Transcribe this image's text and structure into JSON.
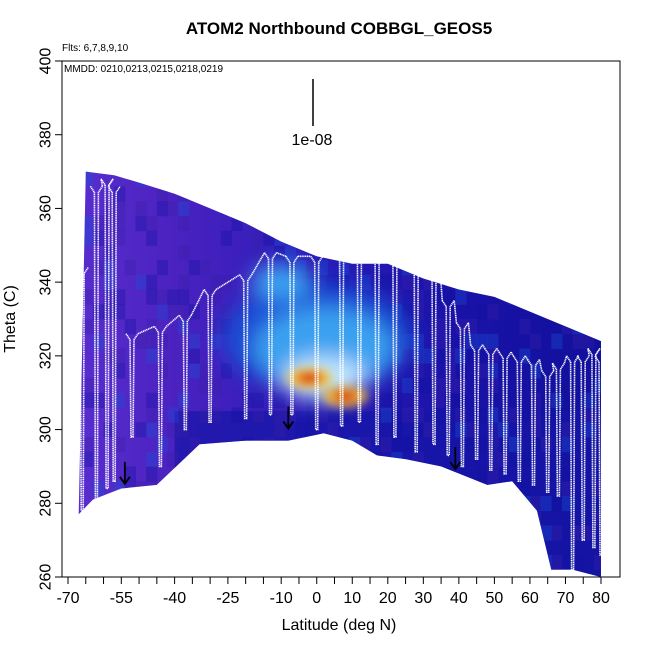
{
  "chart_data": {
    "type": "heatmap",
    "title": "ATOM2 Northbound COBBGL_GEOS5",
    "subtitle_flights": "Flts: 6,7,8,9,10",
    "subtitle_dates": "MMDD: 0210,0213,0215,0218,0219",
    "xlabel": "Latitude (deg N)",
    "ylabel": "Theta (C)",
    "xlim": [
      -70,
      80
    ],
    "ylim": [
      260,
      400
    ],
    "xticks": [
      -70,
      -55,
      -40,
      -25,
      -10,
      0,
      10,
      20,
      30,
      40,
      50,
      60,
      70,
      80
    ],
    "yticks": [
      260,
      280,
      300,
      320,
      340,
      360,
      380,
      400
    ],
    "scale_label": "1e-08",
    "colormap": [
      "#3a1fa8",
      "#1212a0",
      "#1a4fd6",
      "#3aa0f0",
      "#bfe4ff",
      "#ffffff",
      "#f5c430",
      "#e8401a",
      "#c81010"
    ],
    "top_boundary": [
      [
        -65,
        370
      ],
      [
        -57,
        369
      ],
      [
        -50,
        367
      ],
      [
        -40,
        364
      ],
      [
        -30,
        360
      ],
      [
        -20,
        356
      ],
      [
        -10,
        351
      ],
      [
        0,
        347
      ],
      [
        10,
        345
      ],
      [
        20,
        345
      ],
      [
        30,
        341
      ],
      [
        40,
        338
      ],
      [
        50,
        336
      ],
      [
        60,
        332
      ],
      [
        70,
        328
      ],
      [
        80,
        324
      ]
    ],
    "bottom_boundary": [
      [
        -67,
        277
      ],
      [
        -63,
        281
      ],
      [
        -55,
        284
      ],
      [
        -45,
        285
      ],
      [
        -33,
        296
      ],
      [
        -20,
        297
      ],
      [
        -8,
        297
      ],
      [
        2,
        299
      ],
      [
        10,
        297
      ],
      [
        17,
        293
      ],
      [
        25,
        292
      ],
      [
        35,
        290
      ],
      [
        48,
        285
      ],
      [
        55,
        286
      ],
      [
        62,
        278
      ],
      [
        66,
        262
      ],
      [
        72,
        262
      ],
      [
        80,
        260
      ]
    ],
    "hotspots": [
      [
        -2,
        314,
        1.0
      ],
      [
        8,
        309,
        0.9
      ]
    ],
    "bright_zone": [
      [
        -8,
        345,
        2
      ],
      [
        5,
        324,
        4
      ],
      [
        6,
        308,
        4
      ]
    ],
    "marker_arrows": [
      [
        -54,
        288
      ],
      [
        -8,
        303
      ],
      [
        39,
        292
      ]
    ],
    "flight_vertical_profiles": [
      [
        -66,
        344,
        278
      ],
      [
        -62,
        366,
        281
      ],
      [
        -59,
        368,
        284
      ],
      [
        -57,
        366,
        286
      ],
      [
        -52,
        326,
        298
      ],
      [
        -44,
        328,
        290
      ],
      [
        -37,
        331,
        300
      ],
      [
        -30,
        338,
        302
      ],
      [
        -20,
        342,
        303
      ],
      [
        -13,
        348,
        304
      ],
      [
        -7,
        347,
        304
      ],
      [
        0,
        347,
        300
      ],
      [
        7,
        348,
        301
      ],
      [
        12,
        347,
        302
      ],
      [
        17,
        347,
        296
      ],
      [
        22,
        347,
        298
      ],
      [
        28,
        346,
        294
      ],
      [
        33,
        344,
        296
      ],
      [
        37,
        335,
        293
      ],
      [
        41,
        329,
        290
      ],
      [
        45,
        323,
        292
      ],
      [
        49,
        322,
        289
      ],
      [
        53,
        321,
        288
      ],
      [
        57,
        320,
        286
      ],
      [
        61,
        319,
        285
      ],
      [
        65,
        316,
        283
      ],
      [
        68,
        318,
        282
      ],
      [
        72,
        320,
        262
      ],
      [
        75,
        320,
        270
      ],
      [
        78,
        322,
        268
      ],
      [
        80,
        320,
        266
      ]
    ]
  }
}
